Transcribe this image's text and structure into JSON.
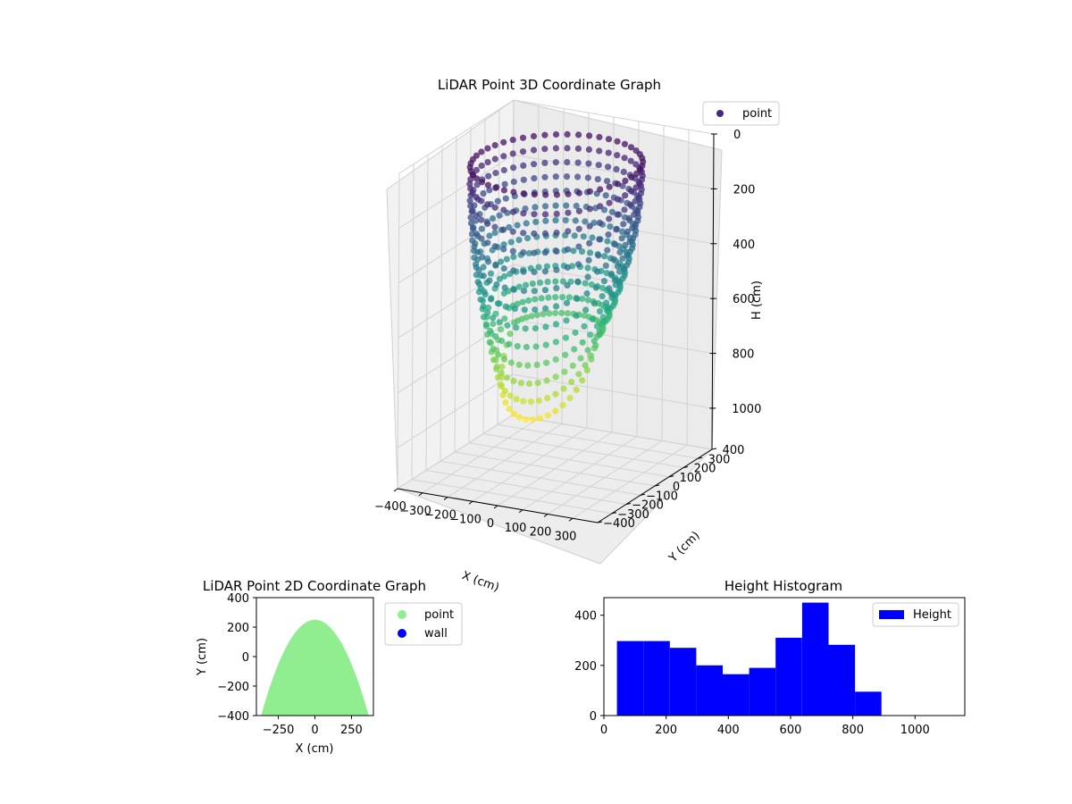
{
  "chart_data": [
    {
      "type": "scatter3d",
      "title": "LiDAR Point 3D Coordinate Graph",
      "xlabel": "X (cm)",
      "ylabel": "Y (cm)",
      "zlabel": "H (cm)",
      "xticks": [
        "−400",
        "−300",
        "−200",
        "−100",
        "0",
        "100",
        "200",
        "300"
      ],
      "yticks": [
        "−400",
        "−300",
        "−200",
        "−100",
        "0",
        "100",
        "200",
        "300",
        "400"
      ],
      "zticks": [
        "0",
        "200",
        "400",
        "600",
        "800",
        "1000"
      ],
      "xlim": [
        -400,
        400
      ],
      "ylim": [
        -400,
        400
      ],
      "zlim": [
        1150,
        0
      ],
      "z_inverted": true,
      "colormap": "viridis",
      "grid": true,
      "legend": {
        "position": "top-right",
        "entries": [
          {
            "label": "point",
            "color": "#482878"
          }
        ]
      },
      "series": [
        {
          "name": "point",
          "shape": "dome of points on a ring of radius about 300 cm around (0, 0), walls vertical at the rear and splaying outward toward the front",
          "height_range": [
            40,
            900
          ]
        }
      ]
    },
    {
      "type": "scatter",
      "title": "LiDAR Point 2D Coordinate Graph",
      "xlabel": "X (cm)",
      "ylabel": "Y (cm)",
      "xticks": [
        "−250",
        "0",
        "250"
      ],
      "yticks": [
        "400",
        "200",
        "0",
        "−200",
        "−400"
      ],
      "xlim": [
        -400,
        400
      ],
      "ylim": [
        -400,
        400
      ],
      "grid": false,
      "legend": {
        "position": "outside-right",
        "entries": [
          {
            "label": "point",
            "color": "#90ee90"
          },
          {
            "label": "wall",
            "color": "#0000ff"
          }
        ]
      },
      "series": [
        {
          "name": "point",
          "color": "#90ee90",
          "region": "filled area bounded above by a dome peaking near y = 250 at x = 0 and filling down to y = -400"
        },
        {
          "name": "wall",
          "color": "#0000ff",
          "points": []
        }
      ]
    },
    {
      "type": "histogram",
      "title": "Height Histogram",
      "xlabel": "",
      "ylabel": "",
      "xticks": [
        "0",
        "200",
        "400",
        "600",
        "800",
        "1000"
      ],
      "yticks": [
        "0",
        "200",
        "400"
      ],
      "xlim": [
        0,
        1160
      ],
      "ylim": [
        0,
        470
      ],
      "color": "#0000ff",
      "legend": {
        "position": "top-right",
        "entries": [
          {
            "label": "Height",
            "color": "#0000ff"
          }
        ]
      },
      "bin_edges": [
        42,
        127,
        212,
        297,
        382,
        467,
        552,
        637,
        722,
        807,
        892
      ],
      "counts": [
        297,
        297,
        270,
        200,
        165,
        190,
        310,
        450,
        282,
        95
      ]
    }
  ]
}
